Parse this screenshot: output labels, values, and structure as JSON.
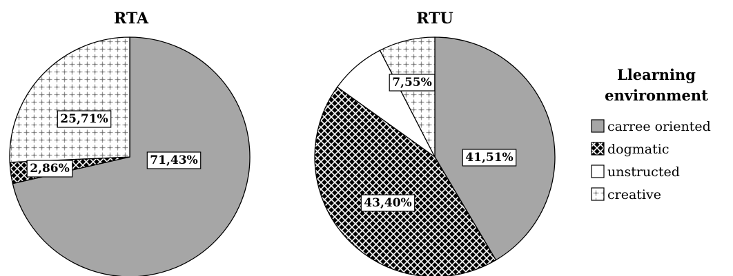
{
  "colors": {
    "carree_oriented": "#a6a6a6",
    "dogmatic": "#000000",
    "unstructed": "#ffffff",
    "creative": "#ffffff",
    "outline": "#000000"
  },
  "chart_data": [
    {
      "type": "pie",
      "title": "RTA",
      "slices": [
        {
          "category": "carree oriented",
          "value": 71.43,
          "label": "71,43%",
          "pattern": "solid-gray"
        },
        {
          "category": "dogmatic",
          "value": 2.86,
          "label": "2,86%",
          "pattern": "crosshatch"
        },
        {
          "category": "unstructed",
          "value": 0,
          "label": "",
          "pattern": "white"
        },
        {
          "category": "creative",
          "value": 25.71,
          "label": "25,71%",
          "pattern": "plus-pattern"
        }
      ]
    },
    {
      "type": "pie",
      "title": "RTU",
      "slices": [
        {
          "category": "carree oriented",
          "value": 41.51,
          "label": "41,51%",
          "pattern": "solid-gray"
        },
        {
          "category": "dogmatic",
          "value": 43.4,
          "label": "43,40%",
          "pattern": "crosshatch"
        },
        {
          "category": "unstructed",
          "value": 7.54,
          "label": "",
          "pattern": "white"
        },
        {
          "category": "creative",
          "value": 7.55,
          "label": "7,55%",
          "pattern": "plus-pattern"
        }
      ]
    }
  ],
  "legend": {
    "title_line1": "Llearning",
    "title_line2": "environment",
    "items": [
      {
        "label": "carree oriented",
        "pattern": "solid-gray"
      },
      {
        "label": "dogmatic",
        "pattern": "crosshatch"
      },
      {
        "label": "unstructed",
        "pattern": "white"
      },
      {
        "label": "creative",
        "pattern": "plus-pattern"
      }
    ]
  }
}
